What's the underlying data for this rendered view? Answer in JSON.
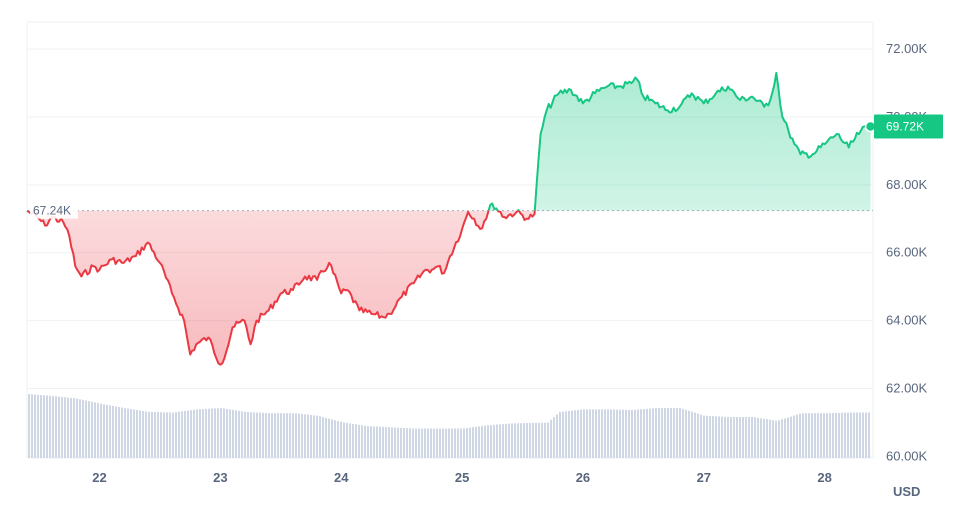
{
  "chart_data": {
    "type": "area",
    "currency_label": "USD",
    "y_ticks": [
      "72.00K",
      "70.00K",
      "68.00K",
      "66.00K",
      "64.00K",
      "62.00K",
      "60.00K"
    ],
    "y_tick_values": [
      72000,
      70000,
      68000,
      66000,
      64000,
      62000,
      60000
    ],
    "ylim": [
      59950,
      72800
    ],
    "x_ticks": [
      "22",
      "23",
      "24",
      "25",
      "26",
      "27",
      "28"
    ],
    "x_tick_values": [
      22,
      23,
      24,
      25,
      26,
      27,
      28
    ],
    "xlim": [
      21.4,
      28.4
    ],
    "reference": {
      "value": 67240,
      "label": "67.24K"
    },
    "current": {
      "value": 69720,
      "label": "69.72K"
    },
    "colors": {
      "up": "#16c784",
      "down": "#ea3943",
      "volume": "#cfd6e4",
      "grid": "#eff2f5",
      "ref_line": "#a6b0c3"
    },
    "series": [
      {
        "x": [
          21.4,
          21.5,
          21.55,
          21.6,
          21.7,
          21.75,
          21.8,
          21.85,
          21.95,
          22.0,
          22.1,
          22.2,
          22.3,
          22.4,
          22.5,
          22.6,
          22.7,
          22.75,
          22.8,
          22.9,
          23.0,
          23.05,
          23.1,
          23.2,
          23.25,
          23.3,
          23.4,
          23.5,
          23.6,
          23.7,
          23.8,
          23.9,
          24.0,
          24.05,
          24.15,
          24.25,
          24.35,
          24.4,
          24.5,
          24.6,
          24.7,
          24.75,
          24.8,
          24.85,
          24.9,
          25.0,
          25.05,
          25.1,
          25.15,
          25.25,
          25.35,
          25.45,
          25.55,
          25.6,
          25.65,
          25.7,
          25.8,
          25.9,
          26.0,
          26.1,
          26.2,
          26.3,
          26.4,
          26.45,
          26.5,
          26.6,
          26.7,
          26.8,
          26.9,
          27.0,
          27.1,
          27.2,
          27.3,
          27.4,
          27.5,
          27.55,
          27.6,
          27.65,
          27.7,
          27.75,
          27.8,
          27.9,
          28.0,
          28.1,
          28.2,
          28.3,
          28.38
        ],
        "y": [
          67240,
          67000,
          66800,
          67050,
          66900,
          66500,
          65600,
          65300,
          65600,
          65500,
          65800,
          65700,
          65900,
          66300,
          65700,
          64800,
          64000,
          63000,
          63300,
          63500,
          62700,
          63100,
          63800,
          64000,
          63300,
          64000,
          64300,
          64800,
          64900,
          65300,
          65200,
          65700,
          64800,
          64900,
          64300,
          64200,
          64100,
          64200,
          64700,
          65100,
          65500,
          65500,
          65600,
          65400,
          65900,
          66700,
          67200,
          67000,
          66700,
          67450,
          67050,
          67200,
          67000,
          67150,
          69500,
          70200,
          70700,
          70800,
          70400,
          70700,
          70900,
          70900,
          71000,
          71100,
          70600,
          70400,
          70200,
          70300,
          70700,
          70400,
          70700,
          70900,
          70500,
          70600,
          70300,
          70500,
          71300,
          70000,
          69600,
          69200,
          68900,
          68900,
          69200,
          69500,
          69100,
          69600,
          69720
        ]
      }
    ],
    "volume": {
      "x": [
        21.4,
        21.6,
        21.8,
        22.0,
        22.2,
        22.4,
        22.6,
        22.8,
        23.0,
        23.2,
        23.4,
        23.6,
        23.8,
        24.0,
        24.2,
        24.4,
        24.6,
        24.8,
        25.0,
        25.2,
        25.4,
        25.6,
        25.7,
        25.8,
        26.0,
        26.2,
        26.4,
        26.6,
        26.8,
        27.0,
        27.2,
        27.4,
        27.6,
        27.8,
        28.0,
        28.2,
        28.38
      ],
      "y": [
        1.0,
        0.97,
        0.93,
        0.85,
        0.78,
        0.72,
        0.71,
        0.76,
        0.78,
        0.72,
        0.7,
        0.7,
        0.66,
        0.56,
        0.5,
        0.48,
        0.46,
        0.46,
        0.46,
        0.51,
        0.54,
        0.55,
        0.55,
        0.72,
        0.76,
        0.76,
        0.75,
        0.78,
        0.78,
        0.66,
        0.64,
        0.64,
        0.58,
        0.7,
        0.7,
        0.71,
        0.71
      ]
    }
  }
}
